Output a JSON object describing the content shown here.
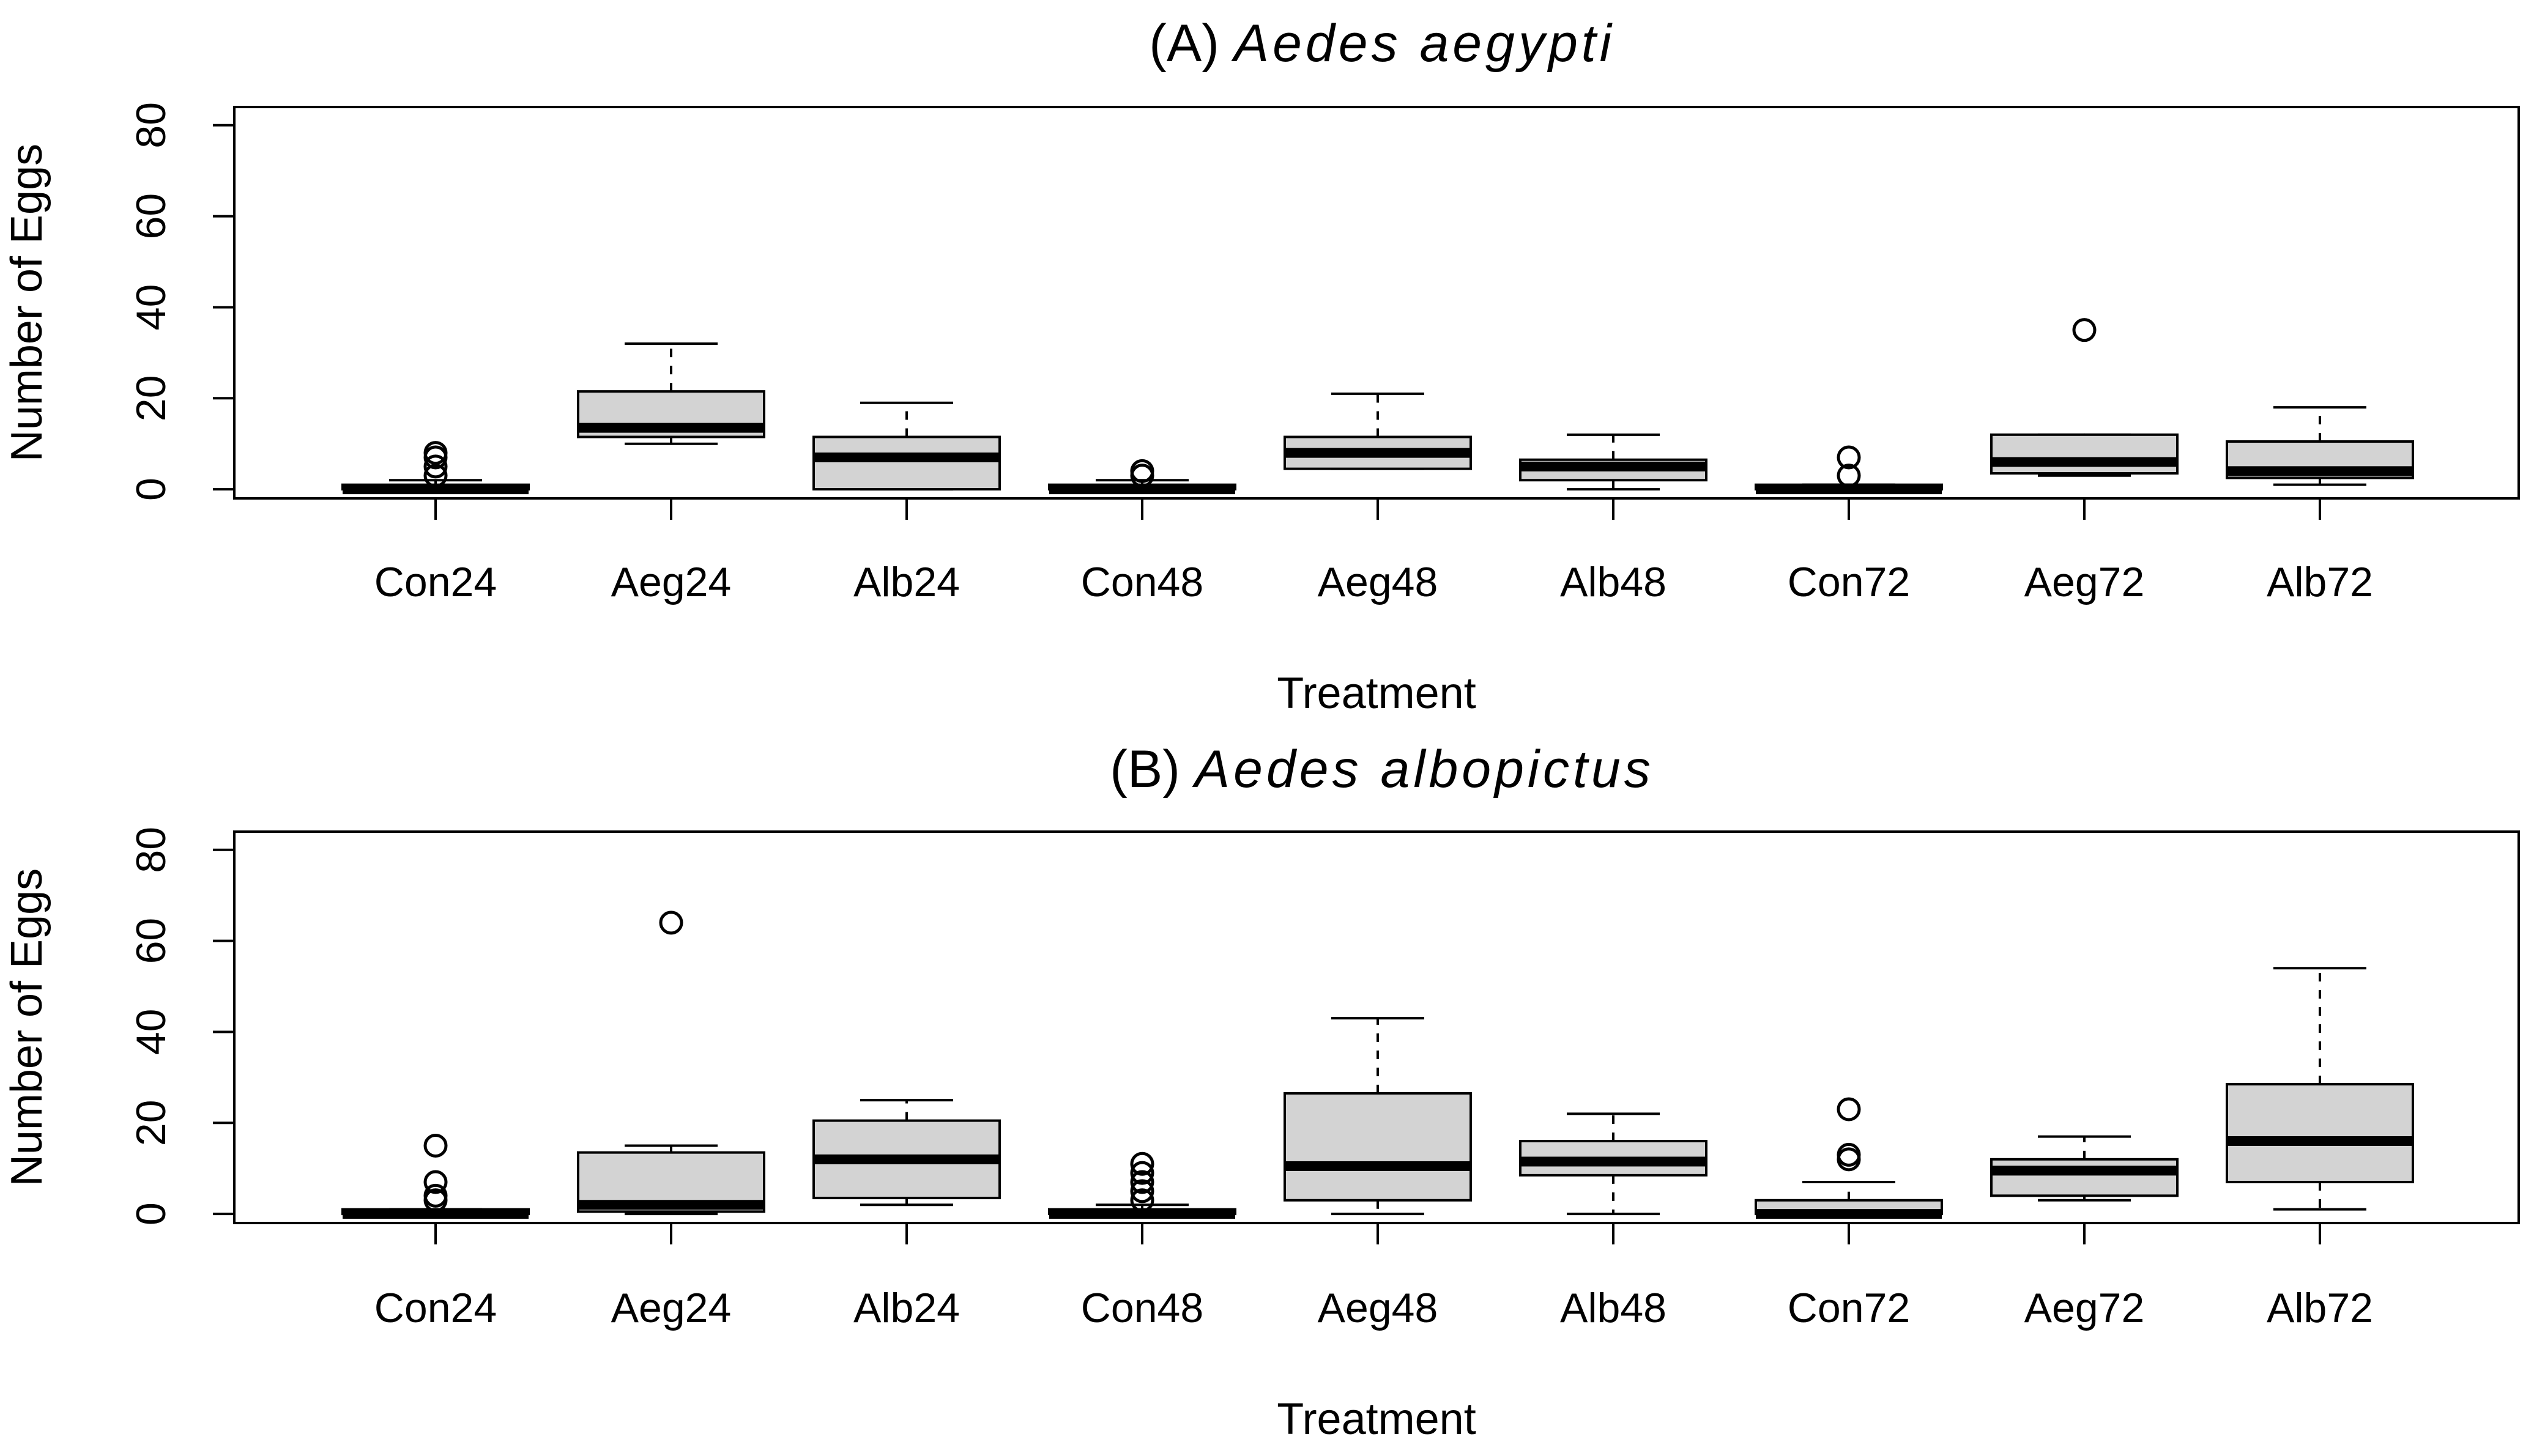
{
  "chart_data": [
    {
      "type": "boxplot",
      "title_prefix": "(A)",
      "title_species": "Aedes aegypti",
      "xlabel": "Treatment",
      "ylabel": "Number of Eggs",
      "ylim": [
        -2,
        84
      ],
      "yticks": [
        0,
        20,
        40,
        60,
        80
      ],
      "categories": [
        "Con24",
        "Aeg24",
        "Alb24",
        "Con48",
        "Aeg48",
        "Alb48",
        "Con72",
        "Aeg72",
        "Alb72"
      ],
      "boxes": [
        {
          "min": 0,
          "q1": 0,
          "median": 0,
          "q3": 1,
          "max": 2,
          "outliers": [
            3,
            5,
            7,
            8
          ]
        },
        {
          "min": 10,
          "q1": 11.5,
          "median": 13.5,
          "q3": 21.5,
          "max": 32,
          "outliers": []
        },
        {
          "min": 0,
          "q1": 0,
          "median": 7,
          "q3": 11.5,
          "max": 19,
          "outliers": []
        },
        {
          "min": 0,
          "q1": 0,
          "median": 0,
          "q3": 1,
          "max": 2,
          "outliers": [
            3,
            4
          ]
        },
        {
          "min": 4.5,
          "q1": 4.5,
          "median": 8,
          "q3": 11.5,
          "max": 21,
          "outliers": []
        },
        {
          "min": 0,
          "q1": 2,
          "median": 5,
          "q3": 6.5,
          "max": 12,
          "outliers": []
        },
        {
          "min": 0,
          "q1": 0,
          "median": 0,
          "q3": 1,
          "max": 1,
          "outliers": [
            3,
            7
          ]
        },
        {
          "min": 3,
          "q1": 3.5,
          "median": 6,
          "q3": 12,
          "max": 12,
          "outliers": [
            35
          ]
        },
        {
          "min": 1,
          "q1": 2.5,
          "median": 4,
          "q3": 10.5,
          "max": 18,
          "outliers": []
        }
      ]
    },
    {
      "type": "boxplot",
      "title_prefix": "(B)",
      "title_species": "Aedes albopictus",
      "xlabel": "Treatment",
      "ylabel": "Number of Eggs",
      "ylim": [
        -2,
        84
      ],
      "yticks": [
        0,
        20,
        40,
        60,
        80
      ],
      "categories": [
        "Con24",
        "Aeg24",
        "Alb24",
        "Con48",
        "Aeg48",
        "Alb48",
        "Con72",
        "Aeg72",
        "Alb72"
      ],
      "boxes": [
        {
          "min": 0,
          "q1": 0,
          "median": 0,
          "q3": 1,
          "max": 1,
          "outliers": [
            3,
            4,
            7,
            15
          ]
        },
        {
          "min": 0,
          "q1": 0.5,
          "median": 2,
          "q3": 13.5,
          "max": 15,
          "outliers": [
            64
          ]
        },
        {
          "min": 2,
          "q1": 3.5,
          "median": 12,
          "q3": 20.5,
          "max": 25,
          "outliers": []
        },
        {
          "min": 0,
          "q1": 0,
          "median": 0,
          "q3": 1,
          "max": 2,
          "outliers": [
            3,
            5,
            7,
            9,
            11
          ]
        },
        {
          "min": 0,
          "q1": 3,
          "median": 10.5,
          "q3": 26.5,
          "max": 43,
          "outliers": []
        },
        {
          "min": 0,
          "q1": 8.5,
          "median": 11.5,
          "q3": 16,
          "max": 22,
          "outliers": []
        },
        {
          "min": 0,
          "q1": 0,
          "median": 0,
          "q3": 3,
          "max": 7,
          "outliers": [
            12,
            13,
            23
          ]
        },
        {
          "min": 3,
          "q1": 4,
          "median": 9.5,
          "q3": 12,
          "max": 17,
          "outliers": []
        },
        {
          "min": 1,
          "q1": 7,
          "median": 16,
          "q3": 28.5,
          "max": 54,
          "outliers": []
        }
      ]
    }
  ]
}
